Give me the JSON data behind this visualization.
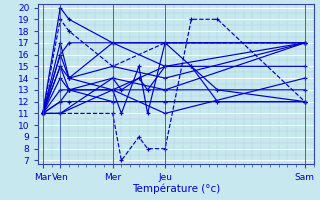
{
  "xlabel": "Température (°c)",
  "background_color": "#c8e8f0",
  "grid_color": "#aaccdd",
  "grid_minor_color": "#b8d8e8",
  "line_color": "#0000cc",
  "ylim": [
    7,
    20
  ],
  "yticks": [
    7,
    8,
    9,
    10,
    11,
    12,
    13,
    14,
    15,
    16,
    17,
    18,
    19,
    20
  ],
  "xtick_labels": [
    "Mar",
    "Ven",
    "Mer",
    "Jeu",
    "Sam"
  ],
  "xtick_positions": [
    0,
    2,
    8,
    14,
    30
  ],
  "xlim": [
    -0.5,
    31
  ],
  "series": [
    [
      11,
      20,
      19,
      17,
      15,
      17
    ],
    [
      11,
      19,
      18,
      15,
      17,
      17
    ],
    [
      11,
      16,
      14,
      15,
      14,
      17
    ],
    [
      11,
      15,
      14,
      13,
      13,
      17
    ],
    [
      11,
      17,
      14,
      17,
      17,
      17
    ],
    [
      11,
      16,
      17,
      17,
      17,
      17
    ],
    [
      11,
      15,
      13,
      13,
      11,
      14
    ],
    [
      11,
      14,
      13,
      13,
      15,
      15
    ],
    [
      11,
      13,
      13,
      14,
      13,
      13
    ],
    [
      11,
      12,
      13,
      12,
      12,
      12
    ],
    [
      11,
      12,
      12,
      12,
      12,
      12
    ],
    [
      11,
      11,
      13,
      11,
      15,
      11,
      17,
      15,
      13,
      12
    ],
    [
      11,
      11,
      14,
      13,
      14,
      13,
      15,
      15,
      12,
      12
    ],
    [
      11,
      11,
      11,
      7,
      9,
      8,
      8,
      19,
      19,
      12
    ]
  ],
  "series_x": [
    [
      0,
      2,
      3,
      8,
      14,
      30
    ],
    [
      0,
      2,
      3,
      8,
      14,
      30
    ],
    [
      0,
      2,
      3,
      8,
      14,
      30
    ],
    [
      0,
      2,
      3,
      8,
      14,
      30
    ],
    [
      0,
      2,
      3,
      8,
      14,
      30
    ],
    [
      0,
      2,
      3,
      8,
      14,
      30
    ],
    [
      0,
      2,
      3,
      8,
      14,
      30
    ],
    [
      0,
      2,
      3,
      8,
      14,
      30
    ],
    [
      0,
      2,
      3,
      8,
      14,
      30
    ],
    [
      0,
      2,
      3,
      8,
      14,
      30
    ],
    [
      0,
      2,
      3,
      8,
      14,
      30
    ],
    [
      0,
      2,
      8,
      9,
      11,
      12,
      14,
      17,
      20,
      30
    ],
    [
      0,
      2,
      8,
      9,
      11,
      12,
      14,
      17,
      20,
      30
    ],
    [
      0,
      2,
      8,
      9,
      11,
      12,
      14,
      17,
      20,
      30
    ]
  ],
  "linestyles": [
    "solid",
    "dashed",
    "solid",
    "solid",
    "solid",
    "solid",
    "solid",
    "solid",
    "solid",
    "solid",
    "solid",
    "solid",
    "solid",
    "dashed"
  ]
}
